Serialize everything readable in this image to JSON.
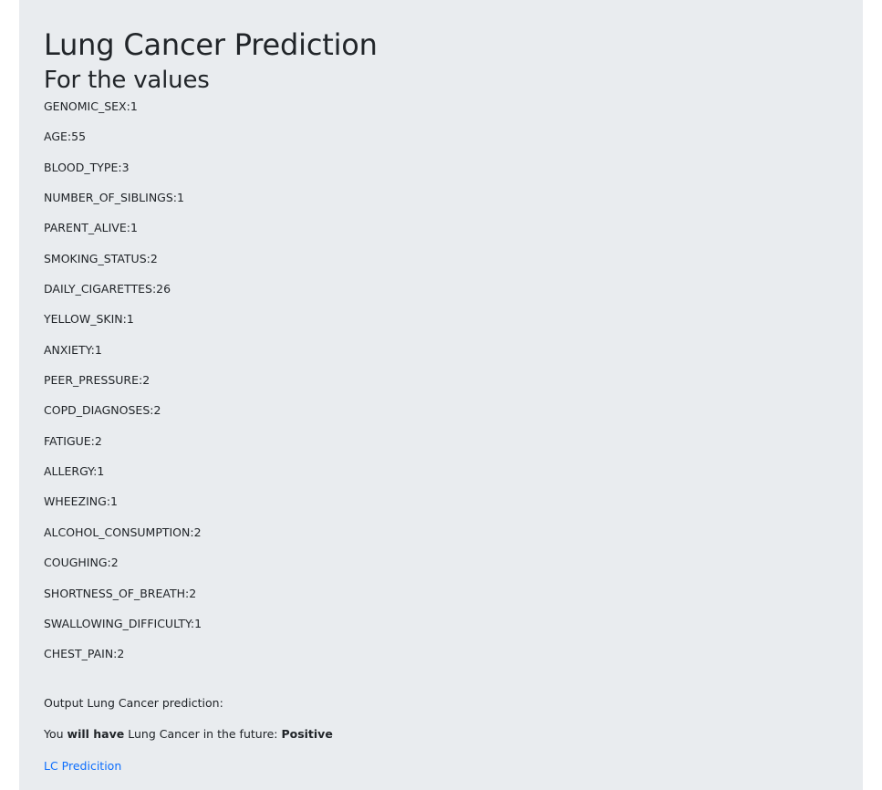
{
  "title": "Lung Cancer Prediction",
  "subtitle": "For the values",
  "values": [
    "GENOMIC_SEX:1",
    "AGE:55",
    "BLOOD_TYPE:3",
    "NUMBER_OF_SIBLINGS:1",
    "PARENT_ALIVE:1",
    "SMOKING_STATUS:2",
    "DAILY_CIGARETTES:26",
    "YELLOW_SKIN:1",
    "ANXIETY:1",
    "PEER_PRESSURE:2",
    "COPD_DIAGNOSES:2",
    "FATIGUE:2",
    "ALLERGY:1",
    "WHEEZING:1",
    "ALCOHOL_CONSUMPTION:2",
    "COUGHING:2",
    "SHORTNESS_OF_BREATH:2",
    "SWALLOWING_DIFFICULTY:1",
    "CHEST_PAIN:2"
  ],
  "output": {
    "label": "Output Lung Cancer prediction:",
    "result": {
      "prefix": "You ",
      "emphasis": "will have",
      "middle": " Lung Cancer in the future: ",
      "value": "Positive"
    },
    "link_text": "LC Predicition"
  }
}
